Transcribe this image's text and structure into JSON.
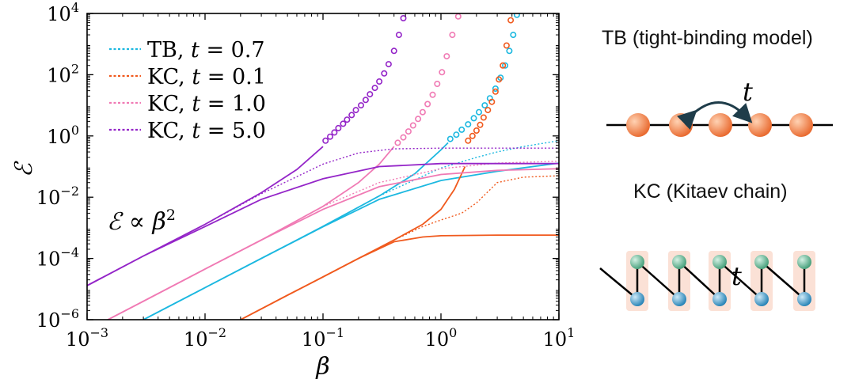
{
  "chart_data": {
    "type": "line",
    "xscale": "log",
    "yscale": "log",
    "xlim": [
      0.001,
      10
    ],
    "ylim": [
      1e-06,
      10000
    ],
    "xlabel": "β",
    "ylabel": "ℰ",
    "x_ticks": [
      {
        "base": "10",
        "exp": "−3",
        "value": 0.001
      },
      {
        "base": "10",
        "exp": "−2",
        "value": 0.01
      },
      {
        "base": "10",
        "exp": "−1",
        "value": 0.1
      },
      {
        "base": "10",
        "exp": "0",
        "value": 1
      },
      {
        "base": "10",
        "exp": "1",
        "value": 10
      }
    ],
    "y_ticks": [
      {
        "base": "10",
        "exp": "−6",
        "value": 1e-06
      },
      {
        "base": "10",
        "exp": "−4",
        "value": 0.0001
      },
      {
        "base": "10",
        "exp": "−2",
        "value": 0.01
      },
      {
        "base": "10",
        "exp": "0",
        "value": 1
      },
      {
        "base": "10",
        "exp": "2",
        "value": 100
      },
      {
        "base": "10",
        "exp": "4",
        "value": 10000
      }
    ],
    "annotation": {
      "prefix": "ℰ ∝ β",
      "exp": "2"
    },
    "legend_position": "top-left",
    "series": [
      {
        "name": "TB, t = 0.7",
        "model": "TB",
        "t_label": "t",
        "t_value": "0.7",
        "color": "#1cb8e0",
        "solid_low": {
          "x": [
            0.003,
            0.01,
            0.03,
            0.1,
            0.3,
            1,
            3,
            10
          ],
          "y": [
            1e-06,
            1.11e-05,
            0.0001,
            0.00108,
            0.0085,
            0.035,
            0.07,
            0.13
          ]
        },
        "solid_high": {
          "x": [
            0.003,
            0.01,
            0.03,
            0.1,
            0.3,
            0.6,
            1.0,
            1.15
          ],
          "y": [
            1e-06,
            1.11e-05,
            0.0001,
            0.00111,
            0.011,
            0.058,
            0.35,
            0.6
          ]
        },
        "dotted": {
          "x": [
            0.1,
            0.3,
            1,
            2,
            3,
            5,
            10
          ],
          "y": [
            0.00111,
            0.011,
            0.09,
            0.2,
            0.3,
            0.45,
            0.7
          ]
        },
        "circles": {
          "x": [
            1.2,
            1.35,
            1.5,
            1.7,
            1.9,
            2.1,
            2.35,
            2.6,
            2.9,
            3.2,
            3.5,
            3.8,
            4.1,
            4.4
          ],
          "y": [
            0.8,
            1.1,
            1.6,
            2.4,
            3.8,
            6,
            10,
            17,
            35,
            80,
            200,
            600,
            2000,
            9000
          ]
        }
      },
      {
        "name": "KC, t = 0.1",
        "model": "KC",
        "t_label": "t",
        "t_value": "0.1",
        "color": "#f05a1e",
        "solid_low": {
          "x": [
            0.02,
            0.05,
            0.1,
            0.2,
            0.4,
            0.7,
            1,
            3,
            10
          ],
          "y": [
            1e-06,
            6.3e-06,
            2.5e-05,
            0.0001,
            0.00035,
            0.0005,
            0.00055,
            0.00058,
            0.00058
          ]
        },
        "solid_high": {
          "x": [
            0.02,
            0.05,
            0.1,
            0.2,
            0.4,
            0.7,
            1.0,
            1.3,
            1.6
          ],
          "y": [
            1e-06,
            6.3e-06,
            2.5e-05,
            0.0001,
            0.0004,
            0.0013,
            0.004,
            0.018,
            0.1
          ]
        },
        "dotted": {
          "x": [
            0.1,
            0.2,
            0.4,
            0.7,
            1,
            1.5,
            2,
            3,
            5,
            10
          ],
          "y": [
            2.5e-05,
            0.0001,
            0.0004,
            0.0011,
            0.0018,
            0.003,
            0.0065,
            0.03,
            0.045,
            0.05
          ]
        },
        "circles": {
          "x": [
            1.7,
            1.85,
            2.0,
            2.15,
            2.3,
            2.5,
            2.7,
            2.9,
            3.1,
            3.35,
            3.6,
            3.9
          ],
          "y": [
            0.7,
            1.0,
            1.5,
            2.3,
            4,
            7,
            13,
            28,
            70,
            200,
            900,
            6000
          ]
        }
      },
      {
        "name": "KC, t = 1.0",
        "model": "KC",
        "t_label": "t",
        "t_value": "1.0",
        "color": "#f07ab4",
        "solid_low": {
          "x": [
            0.0015,
            0.003,
            0.01,
            0.03,
            0.1,
            0.3,
            1,
            3,
            10
          ],
          "y": [
            1e-06,
            4e-06,
            4.5e-05,
            0.0004,
            0.004,
            0.022,
            0.055,
            0.075,
            0.085
          ]
        },
        "solid_high": {
          "x": [
            0.0015,
            0.003,
            0.01,
            0.03,
            0.1,
            0.2,
            0.3,
            0.4
          ],
          "y": [
            1e-06,
            4e-06,
            4.5e-05,
            0.0004,
            0.005,
            0.03,
            0.12,
            0.45
          ]
        },
        "dotted": {
          "x": [
            0.1,
            0.3,
            1,
            3,
            10
          ],
          "y": [
            0.005,
            0.03,
            0.085,
            0.13,
            0.15
          ]
        },
        "circles": {
          "x": [
            0.43,
            0.48,
            0.53,
            0.58,
            0.64,
            0.7,
            0.77,
            0.85,
            0.93,
            1.02,
            1.12,
            1.25,
            1.4
          ],
          "y": [
            0.6,
            0.9,
            1.4,
            2.2,
            3.6,
            6,
            11,
            22,
            50,
            120,
            400,
            2000,
            8000
          ]
        }
      },
      {
        "name": "KC, t = 5.0",
        "model": "KC",
        "t_label": "t",
        "t_value": "5.0",
        "color": "#9425c8",
        "solid_low": {
          "x": [
            0.001,
            0.003,
            0.01,
            0.03,
            0.1,
            0.3,
            1,
            3,
            10
          ],
          "y": [
            1.3e-05,
            0.00012,
            0.0011,
            0.0085,
            0.04,
            0.1,
            0.125,
            0.125,
            0.125
          ]
        },
        "solid_high": {
          "x": [
            0.001,
            0.003,
            0.01,
            0.03,
            0.06,
            0.1
          ],
          "y": [
            1.3e-05,
            0.00012,
            0.0013,
            0.014,
            0.08,
            0.45
          ]
        },
        "dotted": {
          "x": [
            0.01,
            0.03,
            0.1,
            0.2,
            0.4,
            1,
            10
          ],
          "y": [
            0.0013,
            0.013,
            0.12,
            0.28,
            0.38,
            0.4,
            0.4
          ]
        },
        "circles": {
          "x": [
            0.105,
            0.115,
            0.125,
            0.135,
            0.148,
            0.16,
            0.175,
            0.19,
            0.21,
            0.23,
            0.25,
            0.275,
            0.3,
            0.33,
            0.36,
            0.4,
            0.44,
            0.48
          ],
          "y": [
            0.7,
            0.95,
            1.3,
            1.8,
            2.5,
            3.4,
            4.8,
            7,
            10,
            15,
            23,
            37,
            60,
            110,
            220,
            600,
            2000,
            7000
          ]
        }
      }
    ]
  },
  "diagram": {
    "tb_title": "TB (tight-binding model)",
    "kc_title": "KC (Kitaev chain)",
    "hopping_label": "t",
    "tb_site_color": "#f08a4b",
    "kc_top_color": "#4fae8a",
    "kc_bottom_color": "#2f8fc0",
    "kc_box_color": "#fbe1d6"
  }
}
